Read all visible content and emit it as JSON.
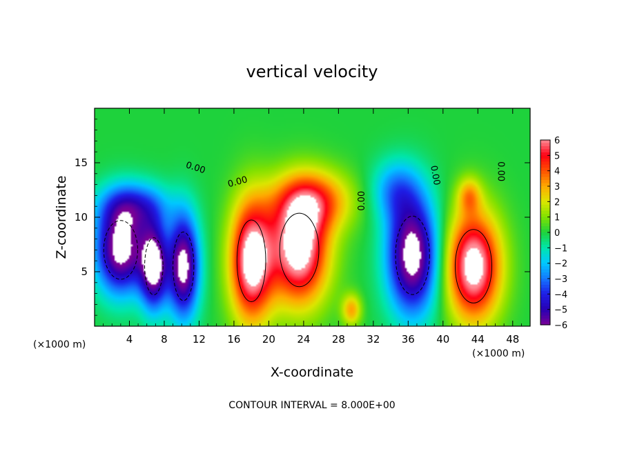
{
  "chart_data": {
    "type": "heatmap",
    "title": "vertical velocity",
    "xlabel": "X-coordinate",
    "ylabel": "Z-coordinate",
    "x_unit_left": "(×1000 m)",
    "x_unit_right": "(×1000 m)",
    "footer": "CONTOUR INTERVAL = 8.000E+00",
    "xlim": [
      0,
      50
    ],
    "ylim": [
      0,
      20
    ],
    "xticks": [
      4,
      8,
      12,
      16,
      20,
      24,
      28,
      32,
      36,
      40,
      44,
      48
    ],
    "yticks": [
      5,
      10,
      15
    ],
    "colorbar": {
      "ticks": [
        6,
        5,
        4,
        3,
        2,
        1,
        0,
        -1,
        -2,
        -3,
        -4,
        -5,
        -6
      ],
      "tick_labels": [
        "6",
        "5",
        "4",
        "3",
        "2",
        "1",
        "0",
        "−1",
        "−2",
        "−3",
        "−4",
        "−5",
        "−6"
      ],
      "range": [
        -6,
        6
      ]
    },
    "contour_labels": [
      {
        "text": "0.00",
        "x": 11.5,
        "z": 14.3,
        "angle": 18
      },
      {
        "text": "0.00",
        "x": 16.5,
        "z": 13.0,
        "angle": -15
      },
      {
        "text": "0.00",
        "x": 31.0,
        "z": 11.5,
        "angle": -90
      },
      {
        "text": "0.00",
        "x": 38.8,
        "z": 13.8,
        "angle": 80
      },
      {
        "text": "0.00",
        "x": 46.3,
        "z": 14.2,
        "angle": 90
      }
    ],
    "features": [
      {
        "sign": "neg",
        "x": 3.0,
        "z": 7.0,
        "rx": 2.6,
        "rz": 3.6,
        "amp": -6.8
      },
      {
        "sign": "neg",
        "x": 6.8,
        "z": 5.5,
        "rx": 1.4,
        "rz": 3.5,
        "amp": -6.5
      },
      {
        "sign": "neg",
        "x": 10.2,
        "z": 5.5,
        "rx": 1.6,
        "rz": 4.2,
        "amp": -6.8
      },
      {
        "sign": "pos",
        "x": 18.0,
        "z": 6.0,
        "rx": 2.2,
        "rz": 5.0,
        "amp": 7.0
      },
      {
        "sign": "pos",
        "x": 23.5,
        "z": 7.0,
        "rx": 3.0,
        "rz": 4.5,
        "amp": 7.0
      },
      {
        "sign": "pos",
        "x": 25.0,
        "z": 11.5,
        "rx": 4.0,
        "rz": 2.5,
        "amp": 4.0
      },
      {
        "sign": "neg",
        "x": 36.5,
        "z": 6.5,
        "rx": 2.6,
        "rz": 4.8,
        "amp": -7.0
      },
      {
        "sign": "pos",
        "x": 43.5,
        "z": 5.5,
        "rx": 2.8,
        "rz": 4.5,
        "amp": 7.0
      },
      {
        "sign": "pos",
        "x": 43.0,
        "z": 12.0,
        "rx": 1.2,
        "rz": 1.5,
        "amp": 2.5
      },
      {
        "sign": "pos",
        "x": 29.5,
        "z": 1.5,
        "rx": 1.0,
        "rz": 1.3,
        "amp": 3.0
      },
      {
        "sign": "neg",
        "x": 4.5,
        "z": 11.0,
        "rx": 3.5,
        "rz": 2.0,
        "amp": -3.5
      },
      {
        "sign": "neg",
        "x": 34.5,
        "z": 12.5,
        "rx": 2.5,
        "rz": 2.5,
        "amp": -2.5
      }
    ]
  }
}
